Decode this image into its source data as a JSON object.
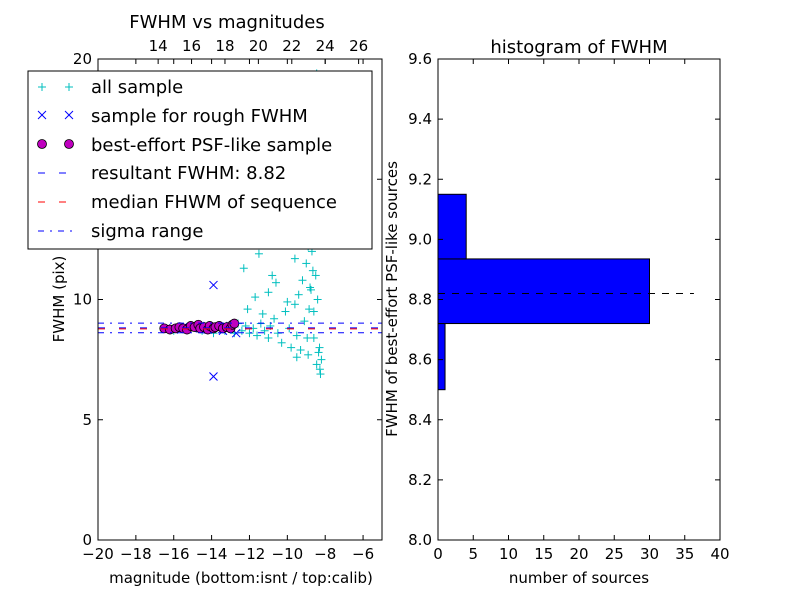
{
  "chart_data": [
    {
      "type": "scatter",
      "title": "FWHM vs magnitudes",
      "xlabel": "magnitude (bottom:isnt / top:calib)",
      "ylabel": "FWHM (pix)",
      "xlim": [
        -20,
        -5
      ],
      "ylim": [
        0,
        20
      ],
      "top_xlim": [
        10.4,
        27.4
      ],
      "xticks": [
        -20,
        -18,
        -16,
        -14,
        -12,
        -10,
        -8,
        -6
      ],
      "xtick_labels": [
        "−20",
        "−18",
        "−16",
        "−14",
        "−12",
        "−10",
        "−8",
        "−6"
      ],
      "yticks": [
        0,
        5,
        10,
        15,
        20
      ],
      "ytick_labels": [
        "0",
        "5",
        "10",
        "",
        "20"
      ],
      "top_xticks": [
        14,
        16,
        18,
        20,
        22,
        24,
        26
      ],
      "top_xtick_labels": [
        "14",
        "16",
        "18",
        "20",
        "22",
        "24",
        "26"
      ],
      "grid": false,
      "legend_position": "top-left",
      "series": [
        {
          "name": "all sample",
          "marker": "+",
          "color": "#00BFBF",
          "points": [
            [
              -16.4,
              8.8
            ],
            [
              -16.0,
              8.7
            ],
            [
              -15.6,
              8.85
            ],
            [
              -15.2,
              8.75
            ],
            [
              -14.9,
              8.9
            ],
            [
              -14.5,
              8.7
            ],
            [
              -14.2,
              8.8
            ],
            [
              -13.9,
              8.6
            ],
            [
              -13.6,
              8.9
            ],
            [
              -13.3,
              8.7
            ],
            [
              -13.0,
              8.75
            ],
            [
              -12.8,
              8.6
            ],
            [
              -12.6,
              9.0
            ],
            [
              -12.4,
              8.7
            ],
            [
              -12.2,
              8.9
            ],
            [
              -12.0,
              8.6
            ],
            [
              -11.8,
              8.8
            ],
            [
              -11.6,
              8.5
            ],
            [
              -11.4,
              9.0
            ],
            [
              -11.2,
              8.7
            ],
            [
              -11.0,
              8.4
            ],
            [
              -10.9,
              8.9
            ],
            [
              -10.7,
              9.2
            ],
            [
              -10.5,
              8.6
            ],
            [
              -10.3,
              8.2
            ],
            [
              -10.1,
              9.5
            ],
            [
              -9.9,
              8.8
            ],
            [
              -9.8,
              8.0
            ],
            [
              -9.6,
              9.8
            ],
            [
              -9.5,
              8.5
            ],
            [
              -9.4,
              10.2
            ],
            [
              -9.3,
              7.9
            ],
            [
              -9.2,
              10.8
            ],
            [
              -9.1,
              9.1
            ],
            [
              -9.0,
              11.5
            ],
            [
              -8.95,
              8.4
            ],
            [
              -8.9,
              12.2
            ],
            [
              -8.85,
              9.6
            ],
            [
              -8.8,
              13.0
            ],
            [
              -8.75,
              10.4
            ],
            [
              -8.7,
              14.0
            ],
            [
              -8.65,
              11.2
            ],
            [
              -8.6,
              15.0
            ],
            [
              -8.55,
              12.5
            ],
            [
              -8.5,
              16.2
            ],
            [
              -8.45,
              7.3
            ],
            [
              -8.4,
              17.5
            ],
            [
              -8.35,
              7.8
            ],
            [
              -8.3,
              18.7
            ],
            [
              -8.28,
              7.1
            ],
            [
              -8.25,
              6.9
            ],
            [
              -8.2,
              7.5
            ],
            [
              -8.4,
              10.0
            ],
            [
              -8.5,
              11.0
            ],
            [
              -8.6,
              9.5
            ],
            [
              -8.7,
              12.0
            ],
            [
              -8.8,
              10.5
            ],
            [
              -9.0,
              13.5
            ],
            [
              -9.2,
              14.5
            ],
            [
              -9.4,
              12.8
            ],
            [
              -9.6,
              11.7
            ],
            [
              -9.7,
              15.2
            ],
            [
              -9.9,
              13.9
            ],
            [
              -10.2,
              12.4
            ],
            [
              -10.5,
              14.1
            ],
            [
              -10.8,
              11.0
            ],
            [
              -11.1,
              13.2
            ],
            [
              -11.5,
              11.9
            ],
            [
              -11.8,
              12.7
            ],
            [
              -12.3,
              11.3
            ],
            [
              -8.45,
              19.4
            ],
            [
              -8.9,
              19.2
            ],
            [
              -9.3,
              17.1
            ],
            [
              -9.8,
              16.4
            ],
            [
              -10.4,
              15.6
            ],
            [
              -11.0,
              10.3
            ],
            [
              -11.7,
              10.1
            ],
            [
              -12.1,
              9.6
            ],
            [
              -8.6,
              8.4
            ],
            [
              -8.3,
              8.0
            ],
            [
              -8.9,
              7.7
            ],
            [
              -9.5,
              7.6
            ],
            [
              -10.0,
              9.9
            ],
            [
              -10.6,
              10.7
            ],
            [
              -11.3,
              9.4
            ],
            [
              -8.75,
              13.6
            ],
            [
              -8.55,
              14.8
            ],
            [
              -8.4,
              15.9
            ],
            [
              -9.05,
              16.8
            ],
            [
              -8.65,
              18.1
            ]
          ]
        },
        {
          "name": "sample for rough FWHM",
          "marker": "x",
          "color": "#0000FF",
          "points": [
            [
              -16.4,
              8.8
            ],
            [
              -16.0,
              8.75
            ],
            [
              -15.5,
              8.85
            ],
            [
              -15.0,
              8.8
            ],
            [
              -14.6,
              8.9
            ],
            [
              -14.2,
              8.75
            ],
            [
              -14.0,
              8.8
            ],
            [
              -13.8,
              8.85
            ],
            [
              -13.4,
              8.7
            ],
            [
              -13.0,
              8.9
            ],
            [
              -12.7,
              8.6
            ],
            [
              -13.9,
              10.6
            ],
            [
              -13.9,
              6.8
            ]
          ]
        },
        {
          "name": "best-effort PSF-like sample",
          "marker": "o",
          "color": "#BF00BF",
          "points": [
            [
              -16.5,
              8.8
            ],
            [
              -16.2,
              8.75
            ],
            [
              -15.9,
              8.8
            ],
            [
              -15.7,
              8.85
            ],
            [
              -15.5,
              8.8
            ],
            [
              -15.3,
              8.75
            ],
            [
              -15.1,
              8.9
            ],
            [
              -14.9,
              8.85
            ],
            [
              -14.7,
              8.95
            ],
            [
              -14.6,
              8.8
            ],
            [
              -14.4,
              8.85
            ],
            [
              -14.2,
              8.75
            ],
            [
              -14.1,
              8.9
            ],
            [
              -13.9,
              8.8
            ],
            [
              -13.8,
              8.85
            ],
            [
              -13.6,
              8.9
            ],
            [
              -13.4,
              8.8
            ],
            [
              -13.2,
              8.85
            ],
            [
              -13.0,
              8.8
            ],
            [
              -12.9,
              8.95
            ],
            [
              -12.8,
              9.0
            ]
          ]
        }
      ],
      "reference_lines": [
        {
          "name": "resultant FWHM: 8.82",
          "value": 8.82,
          "color": "#0000FF",
          "style": "dashed"
        },
        {
          "name": "median FHWM of sequence",
          "value": 8.78,
          "color": "#FF0000",
          "style": "dashed"
        },
        {
          "name": "sigma range",
          "values": [
            8.62,
            9.02
          ],
          "color": "#0000FF",
          "style": "dashdot"
        }
      ]
    },
    {
      "type": "bar",
      "orientation": "horizontal",
      "title": "histogram of FWHM",
      "xlabel": "number of sources",
      "ylabel": "FWHM of best-effort PSF-like sources",
      "xlim": [
        0,
        40
      ],
      "ylim": [
        8.0,
        9.6
      ],
      "xticks": [
        0,
        5,
        10,
        15,
        20,
        25,
        30,
        35,
        40
      ],
      "yticks": [
        8.0,
        8.2,
        8.4,
        8.6,
        8.8,
        9.0,
        9.2,
        9.4,
        9.6
      ],
      "ytick_labels": [
        "8.0",
        "8.2",
        "8.4",
        "8.6",
        "8.8",
        "9.0",
        "9.2",
        "9.4",
        "9.6"
      ],
      "color": "#0000FF",
      "bins": [
        {
          "start": 8.5,
          "end": 8.72,
          "count": 1
        },
        {
          "start": 8.72,
          "end": 8.935,
          "count": 30
        },
        {
          "start": 8.935,
          "end": 9.15,
          "count": 4
        }
      ],
      "reference_line": {
        "value": 8.82,
        "from": 0,
        "to": 36.3,
        "color": "#000000",
        "style": "dashed"
      }
    }
  ]
}
